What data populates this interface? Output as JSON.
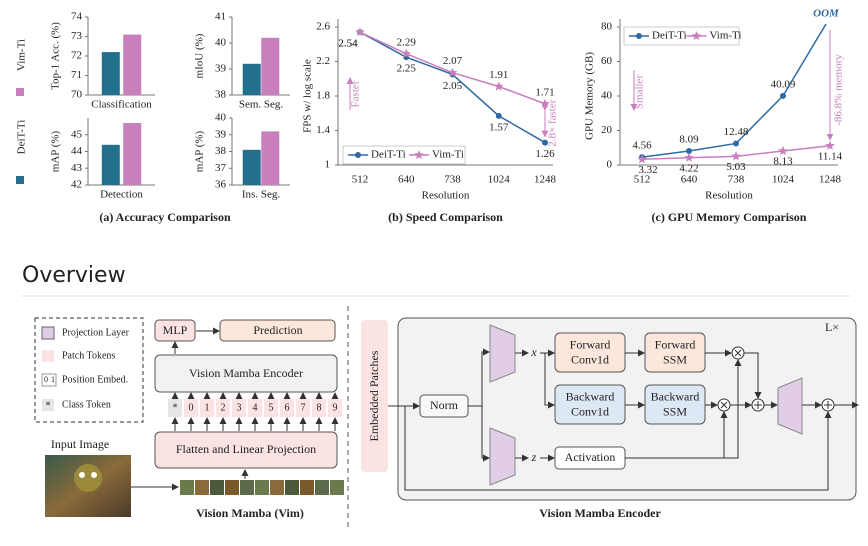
{
  "chart_data": [
    {
      "type": "bar_panels",
      "caption": "(a) Accuracy Comparison",
      "series": [
        {
          "name": "DeiT-Ti",
          "color": "#226f8e"
        },
        {
          "name": "Vim-Ti",
          "color": "#c77fbd"
        }
      ],
      "panels": [
        {
          "title": "Classification",
          "ylabel": "Top-1 Acc. (%)",
          "ylim": [
            70,
            74
          ],
          "yticks": [
            70,
            71,
            72,
            73,
            74
          ],
          "values": [
            72.2,
            73.1
          ]
        },
        {
          "title": "Sem. Seg.",
          "ylabel": "mIoU (%)",
          "ylim": [
            38,
            41
          ],
          "yticks": [
            38,
            39,
            40,
            41
          ],
          "values": [
            39.2,
            40.2
          ]
        },
        {
          "title": "Detection",
          "ylabel": "mAP (%)",
          "ylim": [
            42,
            46
          ],
          "yticks": [
            42,
            43,
            44,
            45
          ],
          "values": [
            44.4,
            45.7
          ]
        },
        {
          "title": "Ins. Seg.",
          "ylabel": "mAP (%)",
          "ylim": [
            36,
            40
          ],
          "yticks": [
            36,
            37,
            38,
            39,
            40
          ],
          "values": [
            38.1,
            39.2
          ]
        }
      ]
    },
    {
      "type": "line",
      "caption": "(b) Speed Comparison",
      "xlabel": "Resolution",
      "ylabel": "FPS w/ log scale",
      "categories": [
        "512",
        "640",
        "738",
        "1024",
        "1248"
      ],
      "ylim": [
        1,
        2.6
      ],
      "yticks": [
        1,
        1.4,
        1.8,
        2.2,
        2.6
      ],
      "legend": "lower left",
      "series": [
        {
          "name": "DeiT-Ti",
          "color": "#2f6aa3",
          "values": [
            2.54,
            2.25,
            2.05,
            1.57,
            1.26
          ]
        },
        {
          "name": "Vim-Ti",
          "color": "#c77fbd",
          "values": [
            2.54,
            2.29,
            2.07,
            1.91,
            1.71
          ]
        }
      ],
      "annotations": [
        "Faster",
        "2.8× faster"
      ]
    },
    {
      "type": "line",
      "caption": "(c) GPU Memory Comparison",
      "xlabel": "Resolution",
      "ylabel": "GPU Memory (GB)",
      "categories": [
        "512",
        "640",
        "738",
        "1024",
        "1248"
      ],
      "ylim": [
        0,
        80
      ],
      "yticks": [
        0,
        20,
        40,
        60,
        80
      ],
      "legend": "upper left",
      "series": [
        {
          "name": "DeiT-Ti",
          "color": "#2f6aa3",
          "values": [
            4.56,
            8.09,
            12.48,
            40.09,
            null
          ]
        },
        {
          "name": "Vim-Ti",
          "color": "#c77fbd",
          "values": [
            3.32,
            4.22,
            5.03,
            8.13,
            11.14
          ]
        }
      ],
      "annotations": [
        "Smaller",
        "-86.8% memory",
        "OOM"
      ]
    }
  ],
  "heading": "Overview",
  "diagram": {
    "legend": [
      "Projection Layer",
      "Patch Tokens",
      "Position Embed.",
      "Class Token"
    ],
    "position_icon": [
      "0",
      "1"
    ],
    "class_icon": "*",
    "input_label": "Input Image",
    "mlp": "MLP",
    "prediction": "Prediction",
    "encoder": "Vision Mamba Encoder",
    "tokens": [
      "*",
      "0",
      "1",
      "2",
      "3",
      "4",
      "5",
      "6",
      "7",
      "8",
      "9"
    ],
    "flatten": "Flatten and Linear Projection",
    "left_caption": "Vision Mamba (Vim)",
    "encoder_block": {
      "input": "Embedded Patches",
      "norm": "Norm",
      "x": "x",
      "z": "z",
      "forward_conv": [
        "Forward",
        "Conv1d"
      ],
      "forward_ssm": [
        "Forward",
        "SSM"
      ],
      "backward_conv": [
        "Backward",
        "Conv1d"
      ],
      "backward_ssm": [
        "Backward",
        "SSM"
      ],
      "activation": "Activation",
      "repeat": "L×",
      "caption": "Vision Mamba Encoder"
    }
  }
}
